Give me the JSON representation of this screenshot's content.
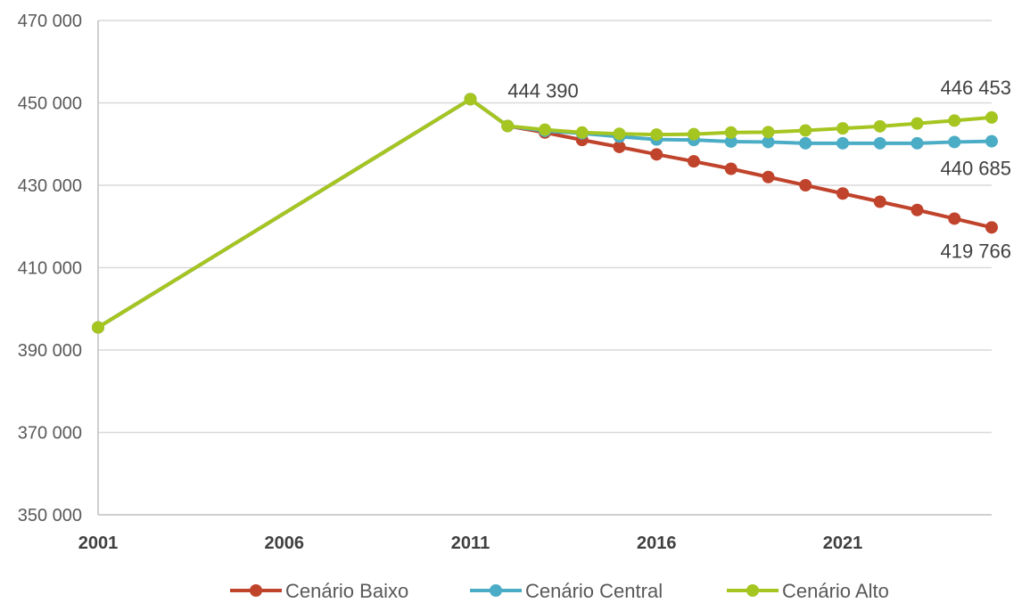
{
  "chart_data": {
    "type": "line",
    "x": [
      2001,
      2011,
      2012,
      2013,
      2014,
      2015,
      2016,
      2017,
      2018,
      2019,
      2020,
      2021,
      2022,
      2023,
      2024,
      2025
    ],
    "x_ticks": [
      2001,
      2006,
      2011,
      2016,
      2021
    ],
    "x_tick_labels": [
      "2001",
      "2006",
      "2011",
      "2016",
      "2021"
    ],
    "xlim": [
      2001,
      2025
    ],
    "ylim": [
      350000,
      470000
    ],
    "y_ticks": [
      350000,
      370000,
      390000,
      410000,
      430000,
      450000,
      470000
    ],
    "y_tick_labels": [
      "350 000",
      "370 000",
      "390 000",
      "410 000",
      "430 000",
      "450 000",
      "470 000"
    ],
    "grid": true,
    "legend_position": "bottom",
    "series": [
      {
        "name": "Cenário Baixo",
        "color": "#c0432b",
        "values": [
          395500,
          450900,
          444390,
          442800,
          441000,
          439300,
          437500,
          435800,
          434000,
          432000,
          430000,
          428000,
          426000,
          424000,
          421900,
          419766
        ]
      },
      {
        "name": "Cenário Central",
        "color": "#4bacc6",
        "values": [
          395500,
          450900,
          444390,
          443200,
          442600,
          441800,
          441100,
          441000,
          440600,
          440500,
          440200,
          440200,
          440200,
          440200,
          440500,
          440685
        ]
      },
      {
        "name": "Cenário Alto",
        "color": "#a5c520",
        "values": [
          395500,
          450900,
          444390,
          443500,
          442800,
          442500,
          442300,
          442400,
          442800,
          442900,
          443300,
          443800,
          444300,
          445000,
          445700,
          446453
        ]
      }
    ],
    "annotations": [
      {
        "text": "444 390",
        "x": 2012,
        "y": 444390,
        "anchor": "start",
        "dx": 0,
        "dy": -32
      },
      {
        "text": "446 453",
        "x": 2025,
        "y": 446453,
        "anchor": "end",
        "dx": 22,
        "dy": -26
      },
      {
        "text": "440 685",
        "x": 2025,
        "y": 440685,
        "anchor": "end",
        "dx": 22,
        "dy": 38
      },
      {
        "text": "419 766",
        "x": 2025,
        "y": 419766,
        "anchor": "end",
        "dx": 22,
        "dy": 34
      }
    ]
  }
}
